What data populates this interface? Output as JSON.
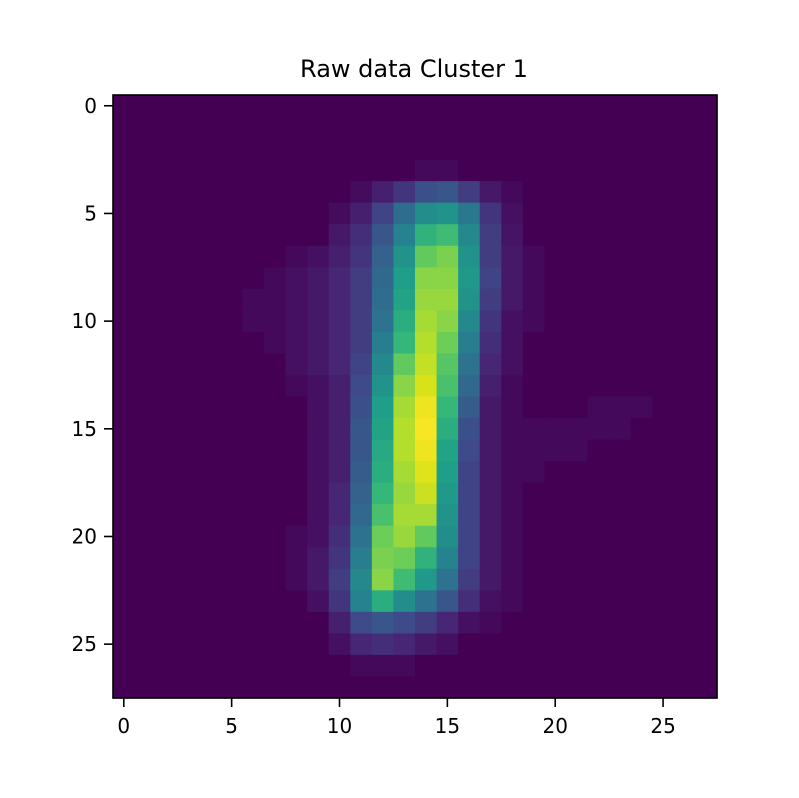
{
  "chart_data": {
    "type": "heatmap",
    "title": "Raw data Cluster 1",
    "xlabel": "",
    "ylabel": "",
    "rows": 28,
    "cols": 28,
    "xlim": [
      -0.5,
      27.5
    ],
    "ylim": [
      27.5,
      -0.5
    ],
    "xticks": [
      0,
      5,
      10,
      15,
      20,
      25
    ],
    "yticks": [
      0,
      5,
      10,
      15,
      20,
      25
    ],
    "colormap": "viridis",
    "value_range": [
      0,
      1
    ],
    "grid": false,
    "colorbar": false,
    "values_format": "intensity 0-1 per pixel, listed by row as [row, [values for cols 0..27]]; unlisted rows are 0",
    "nonzero_rows": [
      [
        3,
        [
          0,
          0,
          0,
          0,
          0,
          0,
          0,
          0,
          0,
          0,
          0,
          0,
          0,
          0,
          0.02,
          0.02,
          0,
          0,
          0,
          0,
          0,
          0,
          0,
          0,
          0,
          0,
          0,
          0
        ]
      ],
      [
        4,
        [
          0,
          0,
          0,
          0,
          0,
          0,
          0,
          0,
          0,
          0,
          0,
          0.03,
          0.08,
          0.14,
          0.22,
          0.24,
          0.16,
          0.06,
          0.02,
          0,
          0,
          0,
          0,
          0,
          0,
          0,
          0,
          0
        ]
      ],
      [
        5,
        [
          0,
          0,
          0,
          0,
          0,
          0,
          0,
          0,
          0,
          0,
          0.03,
          0.08,
          0.18,
          0.32,
          0.44,
          0.46,
          0.36,
          0.14,
          0.04,
          0,
          0,
          0,
          0,
          0,
          0,
          0,
          0,
          0
        ]
      ],
      [
        6,
        [
          0,
          0,
          0,
          0,
          0,
          0,
          0,
          0,
          0,
          0,
          0.06,
          0.12,
          0.24,
          0.4,
          0.58,
          0.62,
          0.42,
          0.16,
          0.05,
          0,
          0,
          0,
          0,
          0,
          0,
          0,
          0,
          0
        ]
      ],
      [
        7,
        [
          0,
          0,
          0,
          0,
          0,
          0,
          0,
          0,
          0.02,
          0.04,
          0.08,
          0.14,
          0.28,
          0.46,
          0.68,
          0.72,
          0.46,
          0.16,
          0.06,
          0.02,
          0,
          0,
          0,
          0,
          0,
          0,
          0,
          0
        ]
      ],
      [
        8,
        [
          0,
          0,
          0,
          0,
          0,
          0,
          0,
          0.02,
          0.04,
          0.06,
          0.1,
          0.16,
          0.3,
          0.5,
          0.74,
          0.74,
          0.48,
          0.18,
          0.06,
          0.02,
          0,
          0,
          0,
          0,
          0,
          0,
          0,
          0
        ]
      ],
      [
        9,
        [
          0,
          0,
          0,
          0,
          0,
          0,
          0.02,
          0.02,
          0.04,
          0.06,
          0.1,
          0.16,
          0.32,
          0.52,
          0.76,
          0.76,
          0.46,
          0.16,
          0.06,
          0.02,
          0,
          0,
          0,
          0,
          0,
          0,
          0,
          0
        ]
      ],
      [
        10,
        [
          0,
          0,
          0,
          0,
          0,
          0,
          0.02,
          0.02,
          0.04,
          0.06,
          0.1,
          0.16,
          0.34,
          0.56,
          0.78,
          0.74,
          0.42,
          0.14,
          0.04,
          0.02,
          0,
          0,
          0,
          0,
          0,
          0,
          0,
          0
        ]
      ],
      [
        11,
        [
          0,
          0,
          0,
          0,
          0,
          0,
          0,
          0.02,
          0.04,
          0.06,
          0.1,
          0.16,
          0.38,
          0.6,
          0.8,
          0.7,
          0.38,
          0.12,
          0.04,
          0,
          0,
          0,
          0,
          0,
          0,
          0,
          0,
          0
        ]
      ],
      [
        12,
        [
          0,
          0,
          0,
          0,
          0,
          0,
          0,
          0,
          0.04,
          0.06,
          0.1,
          0.18,
          0.42,
          0.68,
          0.84,
          0.66,
          0.34,
          0.1,
          0.04,
          0,
          0,
          0,
          0,
          0,
          0,
          0,
          0,
          0
        ]
      ],
      [
        13,
        [
          0,
          0,
          0,
          0,
          0,
          0,
          0,
          0,
          0.02,
          0.04,
          0.08,
          0.2,
          0.46,
          0.74,
          0.9,
          0.64,
          0.3,
          0.08,
          0.02,
          0,
          0,
          0,
          0,
          0,
          0,
          0,
          0,
          0
        ]
      ],
      [
        14,
        [
          0,
          0,
          0,
          0,
          0,
          0,
          0,
          0,
          0,
          0.04,
          0.08,
          0.22,
          0.5,
          0.78,
          0.96,
          0.6,
          0.26,
          0.06,
          0.02,
          0,
          0,
          0,
          0.02,
          0.02,
          0.02,
          0,
          0,
          0
        ]
      ],
      [
        15,
        [
          0,
          0,
          0,
          0,
          0,
          0,
          0,
          0,
          0,
          0.04,
          0.08,
          0.24,
          0.52,
          0.8,
          0.98,
          0.56,
          0.22,
          0.06,
          0.02,
          0.02,
          0.02,
          0.02,
          0.02,
          0.02,
          0,
          0,
          0,
          0
        ]
      ],
      [
        16,
        [
          0,
          0,
          0,
          0,
          0,
          0,
          0,
          0,
          0,
          0.04,
          0.08,
          0.24,
          0.54,
          0.8,
          0.96,
          0.52,
          0.2,
          0.06,
          0.02,
          0.02,
          0.02,
          0.02,
          0,
          0,
          0,
          0,
          0,
          0
        ]
      ],
      [
        17,
        [
          0,
          0,
          0,
          0,
          0,
          0,
          0,
          0,
          0,
          0.04,
          0.08,
          0.26,
          0.56,
          0.78,
          0.92,
          0.5,
          0.18,
          0.06,
          0.02,
          0.02,
          0,
          0,
          0,
          0,
          0,
          0,
          0,
          0
        ]
      ],
      [
        18,
        [
          0,
          0,
          0,
          0,
          0,
          0,
          0,
          0,
          0,
          0.04,
          0.1,
          0.28,
          0.6,
          0.76,
          0.86,
          0.48,
          0.18,
          0.06,
          0.02,
          0,
          0,
          0,
          0,
          0,
          0,
          0,
          0,
          0
        ]
      ],
      [
        19,
        [
          0,
          0,
          0,
          0,
          0,
          0,
          0,
          0,
          0,
          0.04,
          0.1,
          0.3,
          0.64,
          0.78,
          0.78,
          0.46,
          0.18,
          0.06,
          0.02,
          0,
          0,
          0,
          0,
          0,
          0,
          0,
          0,
          0
        ]
      ],
      [
        20,
        [
          0,
          0,
          0,
          0,
          0,
          0,
          0,
          0,
          0.02,
          0.04,
          0.12,
          0.34,
          0.7,
          0.76,
          0.68,
          0.44,
          0.18,
          0.06,
          0.02,
          0,
          0,
          0,
          0,
          0,
          0,
          0,
          0,
          0
        ]
      ],
      [
        21,
        [
          0,
          0,
          0,
          0,
          0,
          0,
          0,
          0,
          0.02,
          0.06,
          0.14,
          0.38,
          0.72,
          0.7,
          0.58,
          0.4,
          0.18,
          0.06,
          0.02,
          0,
          0,
          0,
          0,
          0,
          0,
          0,
          0,
          0
        ]
      ],
      [
        22,
        [
          0,
          0,
          0,
          0,
          0,
          0,
          0,
          0,
          0.02,
          0.06,
          0.16,
          0.42,
          0.74,
          0.62,
          0.48,
          0.34,
          0.16,
          0.06,
          0.02,
          0,
          0,
          0,
          0,
          0,
          0,
          0,
          0,
          0
        ]
      ],
      [
        23,
        [
          0,
          0,
          0,
          0,
          0,
          0,
          0,
          0,
          0,
          0.04,
          0.14,
          0.4,
          0.56,
          0.44,
          0.34,
          0.24,
          0.12,
          0.04,
          0.02,
          0,
          0,
          0,
          0,
          0,
          0,
          0,
          0,
          0
        ]
      ],
      [
        24,
        [
          0,
          0,
          0,
          0,
          0,
          0,
          0,
          0,
          0,
          0,
          0.08,
          0.2,
          0.24,
          0.2,
          0.16,
          0.1,
          0.04,
          0.02,
          0,
          0,
          0,
          0,
          0,
          0,
          0,
          0,
          0,
          0
        ]
      ],
      [
        25,
        [
          0,
          0,
          0,
          0,
          0,
          0,
          0,
          0,
          0,
          0,
          0.04,
          0.1,
          0.12,
          0.1,
          0.06,
          0.04,
          0,
          0,
          0,
          0,
          0,
          0,
          0,
          0,
          0,
          0,
          0,
          0
        ]
      ],
      [
        26,
        [
          0,
          0,
          0,
          0,
          0,
          0,
          0,
          0,
          0,
          0,
          0,
          0.02,
          0.02,
          0.02,
          0,
          0,
          0,
          0,
          0,
          0,
          0,
          0,
          0,
          0,
          0,
          0,
          0,
          0
        ]
      ]
    ]
  }
}
